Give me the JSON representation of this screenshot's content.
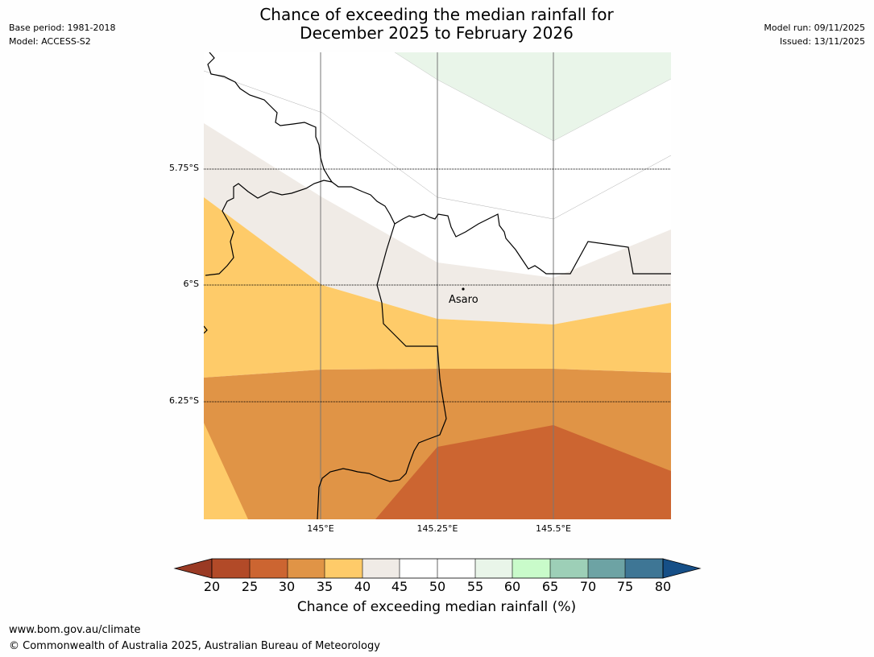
{
  "header": {
    "base_period": "Base period: 1981-2018",
    "model": "Model: ACCESS-S2",
    "title_line1": "Chance of exceeding the median rainfall for",
    "title_line2": "December 2025 to February 2026",
    "model_run": "Model run: 09/11/2025",
    "issued": "Issued: 13/11/2025"
  },
  "map": {
    "latitude_labels": [
      "5.75°S",
      "6°S",
      "6.25°S"
    ],
    "longitude_labels": [
      "145°E",
      "145.25°E",
      "145.5°E"
    ],
    "place": "Asaro",
    "category_colors": {
      "below20": "#9a3a24",
      "20-25": "#b24a28",
      "25-30": "#cc6531",
      "30-35": "#e09446",
      "35-40": "#fecb69",
      "40-45": "#f0ebe6",
      "45-55": "#ffffff",
      "55-60": "#e9f5e9",
      "60-65": "#c9fbca",
      "65-70": "#9dcfb7",
      "70-75": "#6da3a4",
      "75-80": "#3e7695",
      "above80": "#164f87"
    }
  },
  "colorbar": {
    "ticks": [
      "20",
      "25",
      "30",
      "35",
      "40",
      "45",
      "50",
      "55",
      "60",
      "65",
      "70",
      "75",
      "80"
    ],
    "label": "Chance of exceeding median rainfall (%)"
  },
  "footer": {
    "url": "www.bom.gov.au/climate",
    "copyright": "© Commonwealth of Australia 2025, Australian Bureau of Meteorology"
  }
}
